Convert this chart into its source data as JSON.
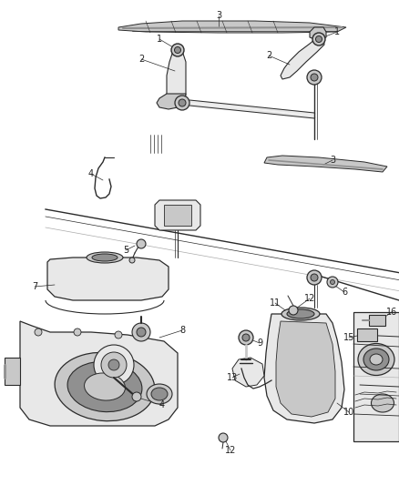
{
  "bg_color": "#ffffff",
  "line_color": "#2a2a2a",
  "fig_width": 4.38,
  "fig_height": 5.33,
  "dpi": 100,
  "label_fontsize": 7.0,
  "label_color": "#222222",
  "gray_light": "#e8e8e8",
  "gray_mid": "#c8c8c8",
  "gray_dark": "#909090",
  "gray_blade": "#888888"
}
